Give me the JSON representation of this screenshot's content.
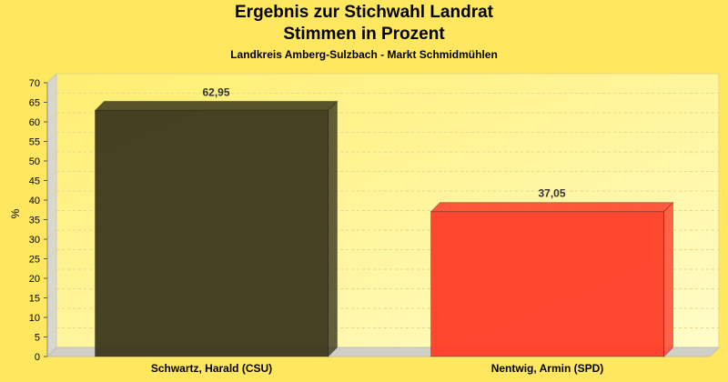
{
  "chart_data": {
    "type": "bar",
    "title": "Ergebnis zur Stichwahl Landrat",
    "title_line2": "Stimmen in Prozent",
    "subtitle": "Landkreis Amberg-Sulzbach - Markt Schmidmühlen",
    "ylabel": "%",
    "xlabel": "",
    "ylim": [
      0,
      70
    ],
    "yticks": [
      "0",
      "5",
      "10",
      "15",
      "20",
      "25",
      "30",
      "35",
      "40",
      "45",
      "50",
      "55",
      "60",
      "65",
      "70"
    ],
    "grid": true,
    "categories": [
      "Schwartz, Harald (CSU)",
      "Nentwig, Armin (SPD)"
    ],
    "values": [
      62.95,
      37.05
    ],
    "value_labels": [
      "62,95",
      "37,05"
    ],
    "colors": [
      "#3b371b",
      "#ff3c28"
    ],
    "background": "#ffe75f",
    "plot_background": "#fff7a0"
  }
}
